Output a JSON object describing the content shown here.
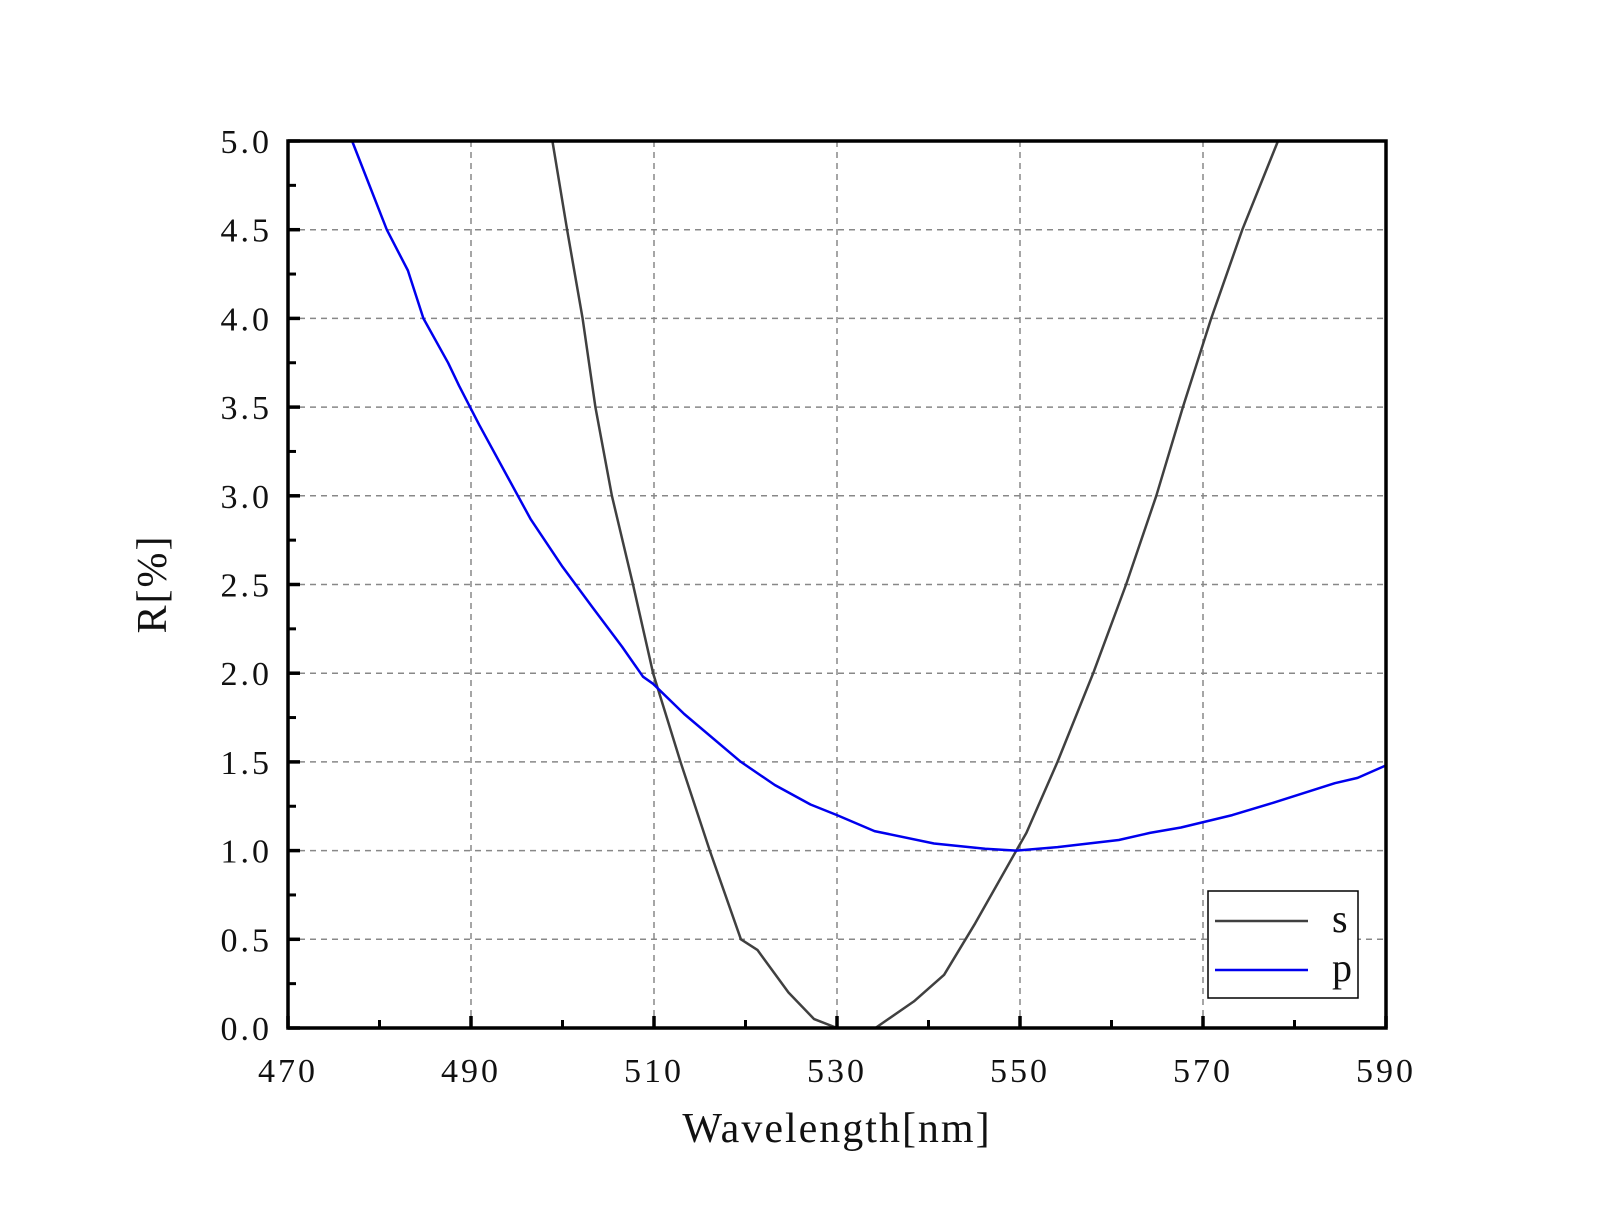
{
  "chart_data": {
    "type": "line",
    "title": "",
    "xlabel": "Wavelength[nm]",
    "ylabel": "R[%]",
    "xlim": [
      470,
      590
    ],
    "ylim": [
      0,
      5.0
    ],
    "xticks": [
      470,
      490,
      510,
      530,
      550,
      570,
      590
    ],
    "xtick_labels": [
      "470",
      "490",
      "510",
      "530",
      "550",
      "570",
      "590"
    ],
    "yticks": [
      0,
      0.5,
      1.0,
      1.5,
      2.0,
      2.5,
      3.0,
      3.5,
      4.0,
      4.5,
      5.0
    ],
    "ytick_labels": [
      "0.0",
      "0.5",
      "1.0",
      "1.5",
      "2.0",
      "2.5",
      "3.0",
      "3.5",
      "4.0",
      "4.5",
      "5.0"
    ],
    "grid": true,
    "legend_position": "bottom-right",
    "series": [
      {
        "name": "s",
        "color": "#404040",
        "x": [
          498.9,
          500.5,
          502.2,
          503.6,
          505.4,
          507.7,
          509.9,
          512.9,
          516.1,
          519.5,
          521.3,
          524.7,
          527.5,
          530.0,
          534.2,
          538.4,
          541.7,
          545.1,
          549.6,
          550.7,
          554.1,
          558.0,
          561.6,
          564.9,
          567.8,
          570.9,
          574.3,
          578.2
        ],
        "y": [
          5.0,
          4.5,
          4.0,
          3.5,
          3.0,
          2.5,
          2.0,
          1.5,
          1.0,
          0.5,
          0.44,
          0.2,
          0.05,
          0.0,
          0.0,
          0.15,
          0.3,
          0.59,
          1.0,
          1.1,
          1.5,
          2.0,
          2.5,
          3.0,
          3.5,
          4.0,
          4.5,
          5.0
        ]
      },
      {
        "name": "p",
        "color": "#0000ee",
        "x": [
          477.0,
          480.8,
          483.1,
          484.8,
          487.5,
          488.7,
          490.9,
          496.5,
          500.0,
          503.3,
          506.5,
          508.8,
          509.9,
          513.3,
          519.5,
          523.2,
          527.1,
          530.0,
          534.1,
          540.6,
          546.2,
          549.6,
          554.1,
          557.5,
          560.8,
          564.2,
          567.6,
          573.2,
          577.7,
          584.4,
          586.9,
          590.0
        ],
        "y": [
          5.0,
          4.5,
          4.27,
          4.0,
          3.75,
          3.62,
          3.4,
          2.87,
          2.6,
          2.37,
          2.15,
          1.98,
          1.94,
          1.77,
          1.5,
          1.37,
          1.26,
          1.2,
          1.11,
          1.04,
          1.01,
          1.0,
          1.02,
          1.04,
          1.06,
          1.1,
          1.13,
          1.2,
          1.27,
          1.38,
          1.41,
          1.48
        ]
      }
    ]
  }
}
